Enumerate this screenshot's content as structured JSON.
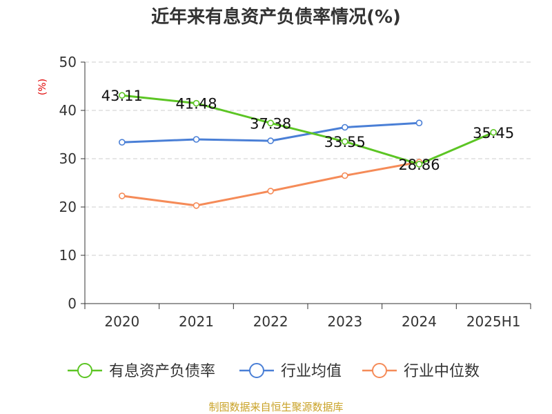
{
  "chart_data": {
    "type": "line",
    "title": "近年来有息资产负债率情况(%)",
    "ylabel": "(%)",
    "xlabel": "",
    "categories": [
      "2020",
      "2021",
      "2022",
      "2023",
      "2024",
      "2025H1"
    ],
    "ylim": [
      0,
      50
    ],
    "yticks": [
      0,
      10,
      20,
      30,
      40,
      50
    ],
    "grid": true,
    "legend_position": "bottom",
    "series": [
      {
        "name": "有息资产负债率",
        "color": "#5cc524",
        "values": [
          43.11,
          41.48,
          37.38,
          33.55,
          28.86,
          35.45
        ],
        "labels": [
          "43.11",
          "41.48",
          "37.38",
          "33.55",
          "28.86",
          "35.45"
        ]
      },
      {
        "name": "行业均值",
        "color": "#4a7fd6",
        "values": [
          33.4,
          34.0,
          33.7,
          36.5,
          37.4,
          null
        ]
      },
      {
        "name": "行业中位数",
        "color": "#f58b58",
        "values": [
          22.3,
          20.3,
          23.3,
          26.5,
          29.3,
          null
        ]
      }
    ]
  },
  "source": "制图数据来自恒生聚源数据库"
}
